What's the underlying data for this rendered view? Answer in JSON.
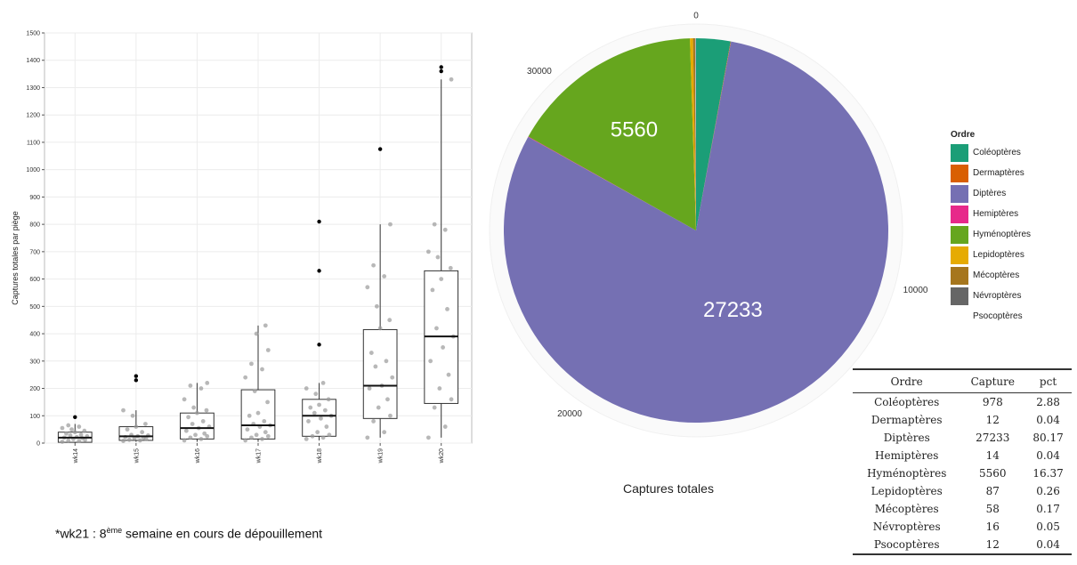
{
  "chart_data": [
    {
      "type": "box",
      "ylabel": "Captures totales par piège",
      "ylim": [
        0,
        1500
      ],
      "yticks": [
        0,
        100,
        200,
        300,
        400,
        500,
        600,
        700,
        800,
        900,
        1000,
        1100,
        1200,
        1300,
        1400,
        1500
      ],
      "categories": [
        "wk14",
        "wk15",
        "wk16",
        "wk17",
        "wk18",
        "wk19",
        "wk20"
      ],
      "boxes": [
        {
          "name": "wk14",
          "whisker_low": 0,
          "q1": 3,
          "median": 20,
          "q3": 40,
          "whisker_high": 70,
          "outliers": [
            95
          ],
          "points": [
            5,
            8,
            10,
            12,
            15,
            18,
            20,
            22,
            25,
            28,
            30,
            35,
            40,
            45,
            50,
            55,
            60,
            65
          ]
        },
        {
          "name": "wk15",
          "whisker_low": 5,
          "q1": 10,
          "median": 25,
          "q3": 60,
          "whisker_high": 120,
          "outliers": [
            230,
            245
          ],
          "points": [
            8,
            10,
            12,
            15,
            18,
            20,
            22,
            25,
            28,
            30,
            40,
            50,
            60,
            70,
            100,
            120
          ]
        },
        {
          "name": "wk16",
          "whisker_low": 5,
          "q1": 15,
          "median": 55,
          "q3": 110,
          "whisker_high": 220,
          "outliers": [],
          "points": [
            10,
            15,
            20,
            25,
            30,
            35,
            45,
            55,
            60,
            70,
            80,
            95,
            110,
            120,
            130,
            160,
            200,
            210,
            220
          ]
        },
        {
          "name": "wk17",
          "whisker_low": 5,
          "q1": 15,
          "median": 65,
          "q3": 195,
          "whisker_high": 430,
          "outliers": [],
          "points": [
            10,
            15,
            20,
            25,
            30,
            40,
            50,
            60,
            65,
            70,
            80,
            100,
            110,
            150,
            190,
            240,
            270,
            290,
            340,
            400,
            430
          ]
        },
        {
          "name": "wk18",
          "whisker_low": 10,
          "q1": 25,
          "median": 100,
          "q3": 160,
          "whisker_high": 220,
          "outliers": [
            360,
            630,
            810
          ],
          "points": [
            15,
            20,
            25,
            30,
            40,
            60,
            80,
            90,
            100,
            110,
            120,
            130,
            140,
            160,
            180,
            200,
            220
          ]
        },
        {
          "name": "wk19",
          "whisker_low": 20,
          "q1": 90,
          "median": 210,
          "q3": 415,
          "whisker_high": 800,
          "outliers": [
            1075
          ],
          "points": [
            20,
            40,
            80,
            100,
            130,
            160,
            200,
            210,
            240,
            280,
            300,
            330,
            420,
            450,
            500,
            570,
            610,
            650,
            800
          ]
        },
        {
          "name": "wk20",
          "whisker_low": 20,
          "q1": 145,
          "median": 390,
          "q3": 630,
          "whisker_high": 1330,
          "outliers": [
            1360,
            1375
          ],
          "points": [
            20,
            60,
            130,
            160,
            200,
            250,
            300,
            350,
            390,
            420,
            490,
            560,
            600,
            640,
            680,
            700,
            780,
            800,
            1330
          ]
        }
      ]
    },
    {
      "type": "pie",
      "xlabel": "Captures totales",
      "radial_ticks": [
        "0",
        "10000",
        "20000",
        "30000"
      ],
      "legend_title": "Ordre",
      "legend_position": "right",
      "slices": [
        {
          "name": "Coléoptères",
          "value": 978,
          "color": "#1b9e77",
          "label": ""
        },
        {
          "name": "Dermaptères",
          "value": 12,
          "color": "#d95f02",
          "label": ""
        },
        {
          "name": "Diptères",
          "value": 27233,
          "color": "#7570b3",
          "label": "27233"
        },
        {
          "name": "Hemiptères",
          "value": 14,
          "color": "#e7298a",
          "label": ""
        },
        {
          "name": "Hyménoptères",
          "value": 5560,
          "color": "#66a61e",
          "label": "5560"
        },
        {
          "name": "Lepidoptères",
          "value": 87,
          "color": "#e6ab02",
          "label": ""
        },
        {
          "name": "Mécoptères",
          "value": 58,
          "color": "#a6761d",
          "label": ""
        },
        {
          "name": "Névroptères",
          "value": 16,
          "color": "#666666",
          "label": ""
        },
        {
          "name": "Psocoptères",
          "value": 12,
          "color": "#ffffff",
          "label": ""
        }
      ]
    },
    {
      "type": "table",
      "columns": [
        "Ordre",
        "Capture",
        "pct"
      ],
      "rows": [
        [
          "Coléoptères",
          "978",
          "2.88"
        ],
        [
          "Dermaptères",
          "12",
          "0.04"
        ],
        [
          "Diptères",
          "27233",
          "80.17"
        ],
        [
          "Hemiptères",
          "14",
          "0.04"
        ],
        [
          "Hyménoptères",
          "5560",
          "16.37"
        ],
        [
          "Lepidoptères",
          "87",
          "0.26"
        ],
        [
          "Mécoptères",
          "58",
          "0.17"
        ],
        [
          "Névroptères",
          "16",
          "0.05"
        ],
        [
          "Psocoptères",
          "12",
          "0.04"
        ]
      ]
    }
  ],
  "pie_xlabel": "Captures totales",
  "legend": {
    "title": "Ordre",
    "items": [
      {
        "label": "Coléoptères",
        "color": "#1b9e77"
      },
      {
        "label": "Dermaptères",
        "color": "#d95f02"
      },
      {
        "label": "Diptères",
        "color": "#7570b3"
      },
      {
        "label": "Hemiptères",
        "color": "#e7298a"
      },
      {
        "label": "Hyménoptères",
        "color": "#66a61e"
      },
      {
        "label": "Lepidoptères",
        "color": "#e6ab02"
      },
      {
        "label": "Mécoptères",
        "color": "#a6761d"
      },
      {
        "label": "Névroptères",
        "color": "#666666"
      },
      {
        "label": "Psocoptères",
        "color": "#ffffff"
      }
    ]
  },
  "table": {
    "headers": {
      "ordre": "Ordre",
      "capture": "Capture",
      "pct": "pct"
    },
    "rows": [
      {
        "ordre": "Coléoptères",
        "capture": "978",
        "pct": "2.88"
      },
      {
        "ordre": "Dermaptères",
        "capture": "12",
        "pct": "0.04"
      },
      {
        "ordre": "Diptères",
        "capture": "27233",
        "pct": "80.17"
      },
      {
        "ordre": "Hemiptères",
        "capture": "14",
        "pct": "0.04"
      },
      {
        "ordre": "Hyménoptères",
        "capture": "5560",
        "pct": "16.37"
      },
      {
        "ordre": "Lepidoptères",
        "capture": "87",
        "pct": "0.26"
      },
      {
        "ordre": "Mécoptères",
        "capture": "58",
        "pct": "0.17"
      },
      {
        "ordre": "Névroptères",
        "capture": "16",
        "pct": "0.05"
      },
      {
        "ordre": "Psocoptères",
        "capture": "12",
        "pct": "0.04"
      }
    ]
  },
  "footnote": {
    "prefix": "*wk21 : 8",
    "sup": "ème",
    "suffix": " semaine  en cours de dépouillement"
  },
  "colors": {
    "outlier_point": "#000000",
    "jitter_point": "#9a9a9a",
    "highlight_point": "#c0392b"
  }
}
